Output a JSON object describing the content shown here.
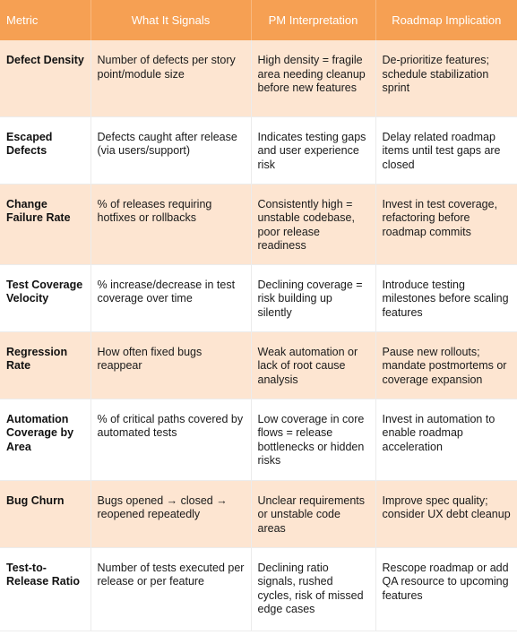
{
  "header": {
    "metric": "Metric",
    "signals": "What It Signals",
    "pm": "PM Interpretation",
    "roadmap": "Roadmap Implication"
  },
  "rows": [
    {
      "metric": "Defect Density",
      "signals": "Number of defects per story point/module size",
      "pm": "High density = fragile area needing cleanup before new features",
      "roadmap": "De-prioritize features; schedule stabilization sprint"
    },
    {
      "metric": "Escaped Defects",
      "signals": "Defects caught after release (via users/support)",
      "pm": "Indicates testing gaps and user experience risk",
      "roadmap": "Delay related roadmap items until test gaps are closed"
    },
    {
      "metric": "Change Failure Rate",
      "signals": "% of releases requiring hotfixes or rollbacks",
      "pm": "Consistently high = unstable codebase, poor release readiness",
      "roadmap": "Invest in test coverage, refactoring before roadmap commits"
    },
    {
      "metric": "Test Coverage Velocity",
      "signals": "% increase/decrease in test coverage over time",
      "pm": "Declining coverage = risk building up silently",
      "roadmap": "Introduce testing milestones before scaling features"
    },
    {
      "metric": "Regression Rate",
      "signals": "How often fixed bugs reappear",
      "pm": "Weak automation or lack of root cause analysis",
      "roadmap": "Pause new rollouts; mandate postmortems or coverage expansion"
    },
    {
      "metric": "Automation Coverage by Area",
      "signals": "% of critical paths covered by automated tests",
      "pm": "Low coverage in core flows = release bottlenecks or hidden risks",
      "roadmap": "Invest in automation to enable roadmap acceleration"
    },
    {
      "metric": "Bug Churn",
      "signals": "Bugs opened → closed → reopened repeatedly",
      "pm": "Unclear requirements or unstable code areas",
      "roadmap": "Improve spec quality; consider UX debt cleanup"
    },
    {
      "metric": "Test-to-Release Ratio",
      "signals": "Number of tests executed per release or per feature",
      "pm": "Declining ratio signals, rushed cycles, risk of missed edge cases",
      "roadmap": "Rescope roadmap or add QA resource to upcoming features"
    }
  ]
}
